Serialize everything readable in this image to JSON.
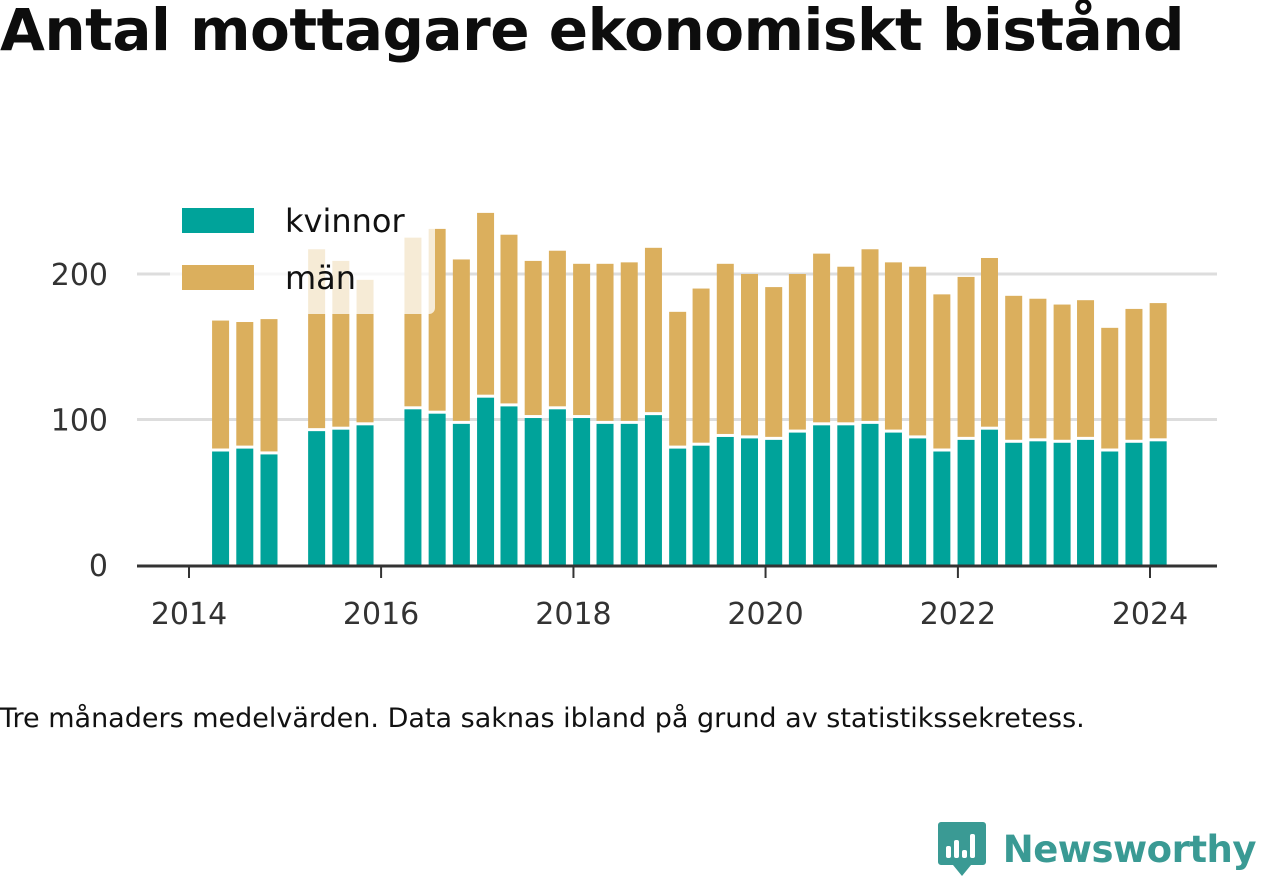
{
  "title": "Antal mottagare ekonomiskt bistånd",
  "note": "Tre månaders medelvärden. Data saknas ibland på grund av statistikssekretess.",
  "brand": {
    "name": "Newsworthy",
    "logo_icon": "newsworthy-chart-logo-icon",
    "color": "#3a9a94"
  },
  "colors": {
    "kvinnor": "#00a39a",
    "man": "#dbaf5d",
    "grid": "#dddddd",
    "axis": "#333333"
  },
  "chart_data": {
    "type": "bar",
    "stacked": true,
    "x_ticks": [
      "2014",
      "2016",
      "2018",
      "2020",
      "2022",
      "2024"
    ],
    "y_ticks": [
      "0",
      "100",
      "200"
    ],
    "ylim": [
      0,
      245
    ],
    "x_range": [
      "2013-10-01",
      "2024-10-01"
    ],
    "legend_position": "top-left",
    "grid": "horizontal",
    "series": [
      {
        "name": "kvinnor",
        "color": "#00a39a"
      },
      {
        "name": "män",
        "color": "#dbaf5d"
      }
    ],
    "points": [
      {
        "date": "2014-05-01",
        "kvinnor": 78,
        "man": 90
      },
      {
        "date": "2014-08-01",
        "kvinnor": 80,
        "man": 87
      },
      {
        "date": "2014-11-01",
        "kvinnor": 76,
        "man": 93
      },
      {
        "date": "2015-05-01",
        "kvinnor": 92,
        "man": 125
      },
      {
        "date": "2015-08-01",
        "kvinnor": 93,
        "man": 116
      },
      {
        "date": "2015-11-01",
        "kvinnor": 96,
        "man": 100
      },
      {
        "date": "2016-05-01",
        "kvinnor": 107,
        "man": 118
      },
      {
        "date": "2016-08-01",
        "kvinnor": 104,
        "man": 127
      },
      {
        "date": "2016-11-01",
        "kvinnor": 97,
        "man": 113
      },
      {
        "date": "2017-02-01",
        "kvinnor": 115,
        "man": 127
      },
      {
        "date": "2017-05-01",
        "kvinnor": 109,
        "man": 118
      },
      {
        "date": "2017-08-01",
        "kvinnor": 101,
        "man": 108
      },
      {
        "date": "2017-11-01",
        "kvinnor": 107,
        "man": 109
      },
      {
        "date": "2018-02-01",
        "kvinnor": 101,
        "man": 106
      },
      {
        "date": "2018-05-01",
        "kvinnor": 97,
        "man": 110
      },
      {
        "date": "2018-08-01",
        "kvinnor": 97,
        "man": 111
      },
      {
        "date": "2018-11-01",
        "kvinnor": 103,
        "man": 115
      },
      {
        "date": "2019-02-01",
        "kvinnor": 80,
        "man": 94
      },
      {
        "date": "2019-05-01",
        "kvinnor": 82,
        "man": 108
      },
      {
        "date": "2019-08-01",
        "kvinnor": 88,
        "man": 119
      },
      {
        "date": "2019-11-01",
        "kvinnor": 87,
        "man": 113
      },
      {
        "date": "2020-02-01",
        "kvinnor": 86,
        "man": 105
      },
      {
        "date": "2020-05-01",
        "kvinnor": 91,
        "man": 109
      },
      {
        "date": "2020-08-01",
        "kvinnor": 96,
        "man": 118
      },
      {
        "date": "2020-11-01",
        "kvinnor": 96,
        "man": 109
      },
      {
        "date": "2021-02-01",
        "kvinnor": 97,
        "man": 120
      },
      {
        "date": "2021-05-01",
        "kvinnor": 91,
        "man": 117
      },
      {
        "date": "2021-08-01",
        "kvinnor": 87,
        "man": 118
      },
      {
        "date": "2021-11-01",
        "kvinnor": 78,
        "man": 108
      },
      {
        "date": "2022-02-01",
        "kvinnor": 86,
        "man": 112
      },
      {
        "date": "2022-05-01",
        "kvinnor": 93,
        "man": 118
      },
      {
        "date": "2022-08-01",
        "kvinnor": 84,
        "man": 101
      },
      {
        "date": "2022-11-01",
        "kvinnor": 85,
        "man": 98
      },
      {
        "date": "2023-02-01",
        "kvinnor": 84,
        "man": 95
      },
      {
        "date": "2023-05-01",
        "kvinnor": 86,
        "man": 96
      },
      {
        "date": "2023-08-01",
        "kvinnor": 78,
        "man": 85
      },
      {
        "date": "2023-11-01",
        "kvinnor": 84,
        "man": 92
      },
      {
        "date": "2024-02-01",
        "kvinnor": 85,
        "man": 95
      }
    ]
  }
}
